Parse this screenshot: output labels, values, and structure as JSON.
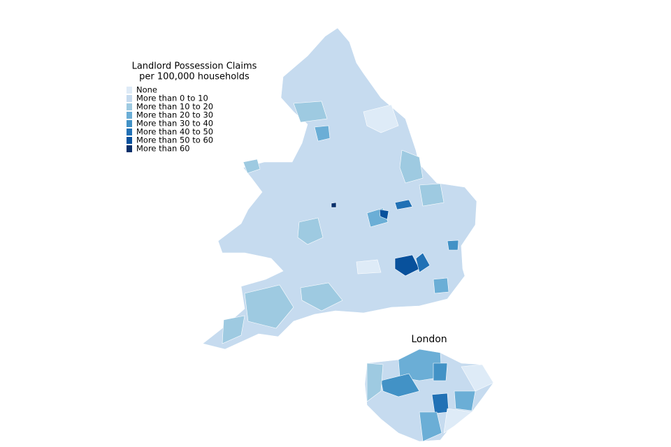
{
  "legend": {
    "title_lines": [
      "Landlord Possession Claims",
      "per 100,000 households"
    ],
    "items": [
      {
        "label": "None",
        "color": "#deebf7"
      },
      {
        "label": "More than 0 to 10",
        "color": "#c6dbef"
      },
      {
        "label": "More than 10 to 20",
        "color": "#9ecae1"
      },
      {
        "label": "More than 20 to 30",
        "color": "#6baed6"
      },
      {
        "label": "More than 30 to 40",
        "color": "#4292c6"
      },
      {
        "label": "More than 40 to 50",
        "color": "#2171b5"
      },
      {
        "label": "More than 50 to 60",
        "color": "#08519c"
      },
      {
        "label": "More than 60",
        "color": "#08306b"
      }
    ]
  },
  "inset": {
    "title": "London"
  }
}
